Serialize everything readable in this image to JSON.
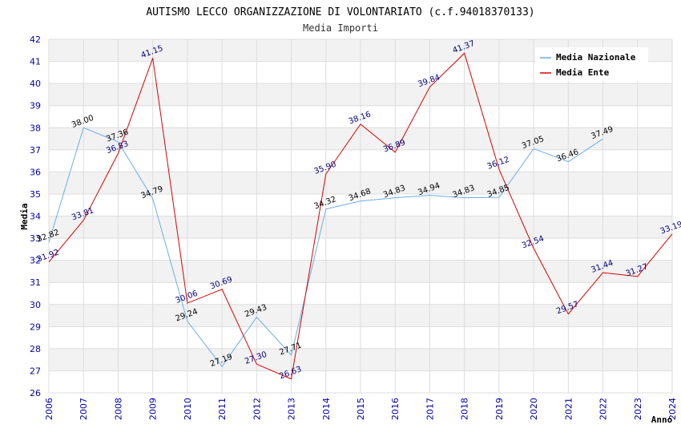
{
  "chart_data": {
    "type": "line",
    "title": "AUTISMO LECCO ORGANIZZAZIONE DI VOLONTARIATO (c.f.94018370133)",
    "subtitle": "Media Importi",
    "xlabel": "Anno",
    "ylabel": "Media",
    "ylim": [
      26,
      42
    ],
    "yticks": [
      "26",
      "27",
      "28",
      "29",
      "30",
      "31",
      "32",
      "33",
      "34",
      "35",
      "36",
      "37",
      "38",
      "39",
      "40",
      "41",
      "42"
    ],
    "categories": [
      "2006",
      "2007",
      "2008",
      "2009",
      "2010",
      "2011",
      "2012",
      "2013",
      "2014",
      "2015",
      "2016",
      "2017",
      "2018",
      "2019",
      "2020",
      "2021",
      "2022",
      "2023",
      "2024"
    ],
    "legend_position": "top-right",
    "series": [
      {
        "name": "Media Nazionale",
        "color": "#6aaee8",
        "values": [
          32.82,
          38.0,
          37.36,
          34.79,
          29.24,
          27.19,
          29.43,
          27.71,
          34.32,
          34.68,
          34.83,
          34.94,
          34.83,
          34.85,
          37.05,
          36.46,
          37.49,
          null,
          null
        ],
        "labels": [
          "32.82",
          "38.00",
          "37.36",
          "34.79",
          "29.24",
          "27.19",
          "29.43",
          "27.71",
          "34.32",
          "34.68",
          "34.83",
          "34.94",
          "34.83",
          "34.85",
          "37.05",
          "36.46",
          "37.49",
          null,
          null
        ]
      },
      {
        "name": "Media Ente",
        "color": "#dd0000",
        "values": [
          31.92,
          33.81,
          36.83,
          41.15,
          30.06,
          30.69,
          27.3,
          26.63,
          35.9,
          38.16,
          36.89,
          39.84,
          41.37,
          36.12,
          32.54,
          29.57,
          31.44,
          31.27,
          33.19
        ],
        "labels": [
          "31.92",
          "33.81",
          "36.83",
          "41.15",
          "30.06",
          "30.69",
          "27.30",
          "26.63",
          "35.90",
          "38.16",
          "36.89",
          "39.84",
          "41.37",
          "36.12",
          "32.54",
          "29.57",
          "31.44",
          "31.27",
          "33.19"
        ]
      }
    ]
  }
}
